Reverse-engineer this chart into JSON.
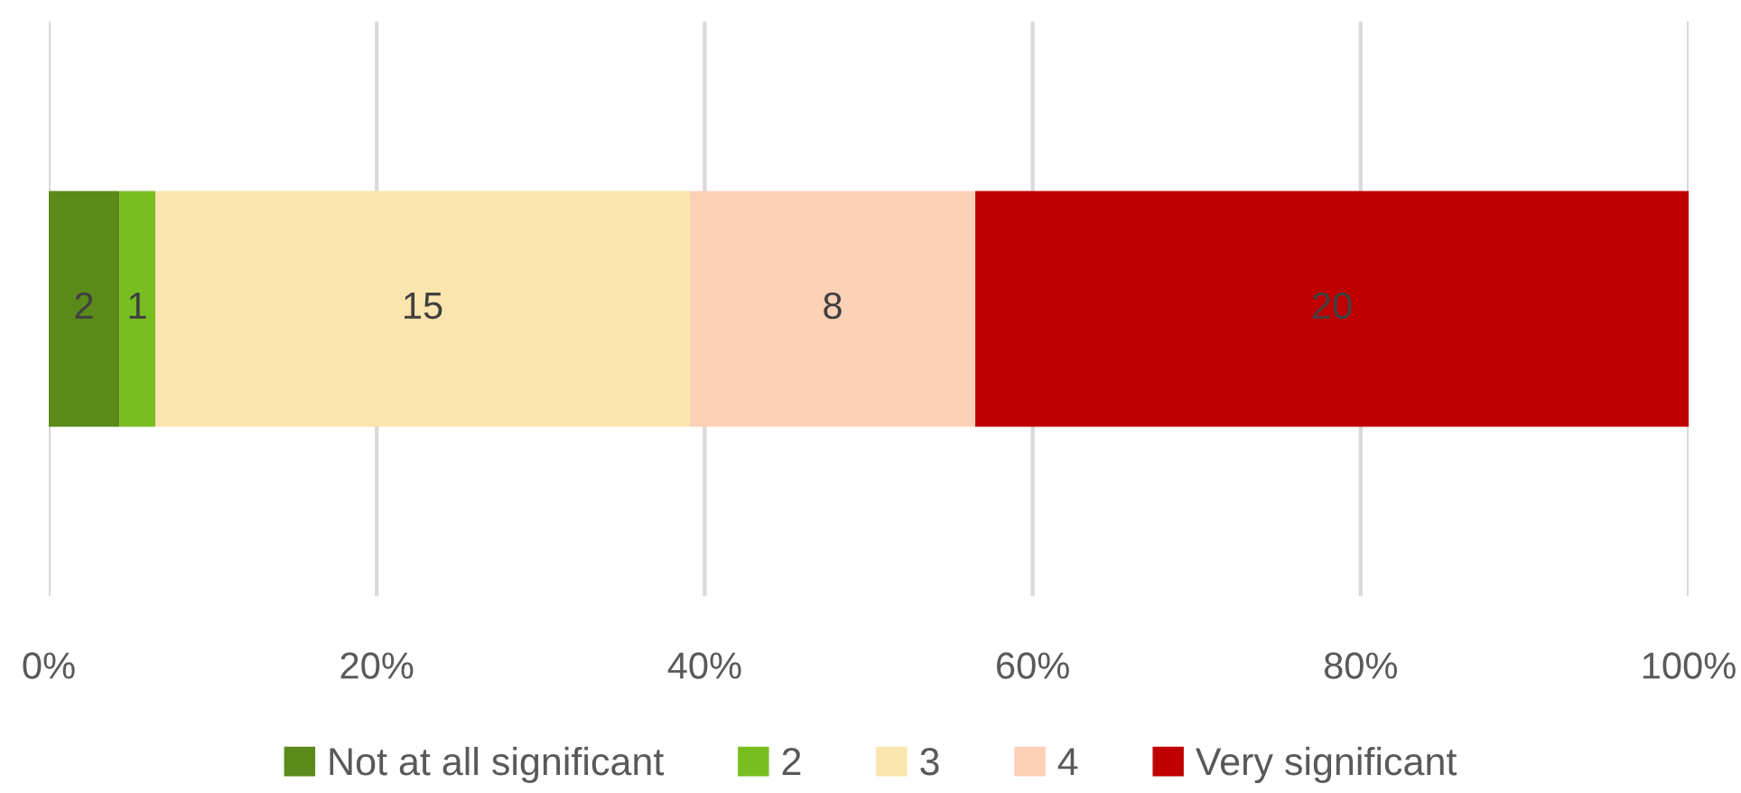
{
  "chart_data": {
    "type": "bar",
    "orientation": "horizontal",
    "stacked": true,
    "categories": [
      null
    ],
    "series": [
      {
        "name": "Not at all significant",
        "color": "#5a8a1a",
        "values": [
          4.3
        ]
      },
      {
        "name": "2",
        "color": "#78be20",
        "values": [
          2.2
        ]
      },
      {
        "name": "3",
        "color": "#fbe5ae",
        "values": [
          32.6
        ]
      },
      {
        "name": "4",
        "color": "#fdd0b8",
        "values": [
          17.4
        ]
      },
      {
        "name": "Very significant",
        "color": "#c00000",
        "values": [
          43.5
        ]
      }
    ],
    "annotations": [
      "2",
      "1",
      "15",
      "8",
      "20"
    ],
    "xlim": [
      0,
      100
    ],
    "xticks": [
      {
        "value": 0,
        "label": "0%"
      },
      {
        "value": 20,
        "label": "20%"
      },
      {
        "value": 40,
        "label": "40%"
      },
      {
        "value": 60,
        "label": "60%"
      },
      {
        "value": 80,
        "label": "80%"
      },
      {
        "value": 100,
        "label": "100%"
      }
    ],
    "grid": "x",
    "legend": "bottom"
  }
}
